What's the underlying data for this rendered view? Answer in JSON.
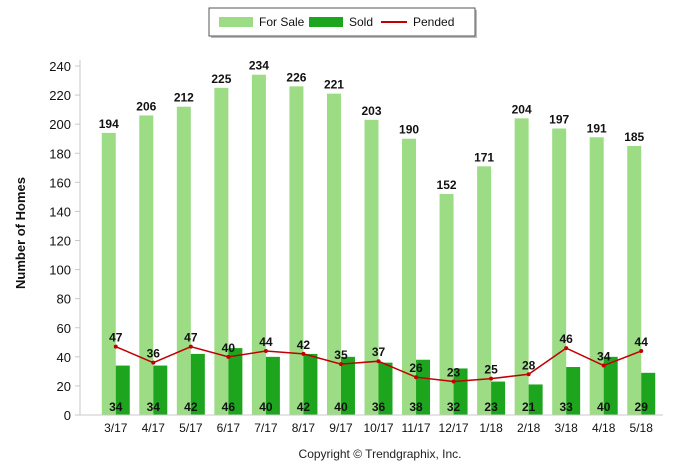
{
  "chart_data": {
    "type": "bar",
    "categories": [
      "3/17",
      "4/17",
      "5/17",
      "6/17",
      "7/17",
      "8/17",
      "9/17",
      "10/17",
      "11/17",
      "12/17",
      "1/18",
      "2/18",
      "3/18",
      "4/18",
      "5/18"
    ],
    "series": [
      {
        "name": "For Sale",
        "type": "bar",
        "color": "#9bdc85",
        "values": [
          194,
          206,
          212,
          225,
          234,
          226,
          221,
          203,
          190,
          152,
          171,
          204,
          197,
          191,
          185
        ]
      },
      {
        "name": "Sold",
        "type": "bar",
        "color": "#1ea51e",
        "values": [
          34,
          34,
          42,
          46,
          40,
          42,
          40,
          36,
          38,
          32,
          23,
          21,
          33,
          40,
          29
        ]
      },
      {
        "name": "Pended",
        "type": "line",
        "color": "#c00000",
        "values": [
          47,
          36,
          47,
          40,
          44,
          42,
          35,
          37,
          26,
          23,
          25,
          28,
          46,
          34,
          44
        ]
      }
    ],
    "ylabel": "Number of Homes",
    "ylim": [
      0,
      240
    ],
    "yticks": [
      0,
      20,
      40,
      60,
      80,
      100,
      120,
      140,
      160,
      180,
      200,
      220,
      240
    ],
    "grid": false,
    "legend_position": "top-center"
  },
  "footer": "Copyright © Trendgraphix, Inc."
}
